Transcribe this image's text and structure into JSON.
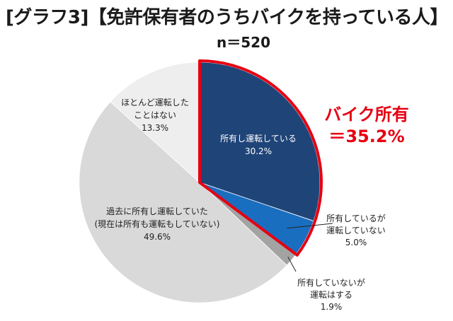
{
  "header": {
    "title": "[グラフ3]【免許保有者のうちバイクを持っている人】",
    "subtitle": "n＝520"
  },
  "colors": {
    "own_ride": "#1f4478",
    "own_noride": "#1a6ec0",
    "noown_ride": "#a3a3a3",
    "past": "#d9d9d9",
    "never": "#eeeeee",
    "highlight": "#e60012"
  },
  "chart_data": {
    "type": "pie",
    "title": "[グラフ3]【免許保有者のうちバイクを持っている人】",
    "subtitle": "n＝520",
    "start": "12 o'clock, clockwise",
    "slices": [
      {
        "name": "own-riding",
        "label": [
          "所有し運転している",
          "30.2%"
        ],
        "value": 30.2,
        "color": "#1f4478",
        "textColor": "#ffffff"
      },
      {
        "name": "own-not-riding",
        "label": [
          "所有しているが",
          "運転していない",
          "5.0%"
        ],
        "value": 5.0,
        "color": "#1a6ec0",
        "textColor": "#222222"
      },
      {
        "name": "not-own-riding",
        "label": [
          "所有していないが",
          "運転はする",
          "1.9%"
        ],
        "value": 1.9,
        "color": "#a3a3a3",
        "textColor": "#222222"
      },
      {
        "name": "past-owner",
        "label": [
          "過去に所有し運転していた",
          "(現在は所有も運転もしていない)",
          "49.6%"
        ],
        "value": 49.6,
        "color": "#d9d9d9",
        "textColor": "#222222"
      },
      {
        "name": "never",
        "label": [
          "ほとんど運転した",
          "ことはない",
          "13.3%"
        ],
        "value": 13.3,
        "color": "#eeeeee",
        "textColor": "#222222"
      }
    ],
    "highlight": {
      "label": [
        "バイク所有",
        "＝35.2%"
      ],
      "value": 35.2,
      "covers": [
        "own-riding",
        "own-not-riding"
      ]
    }
  }
}
